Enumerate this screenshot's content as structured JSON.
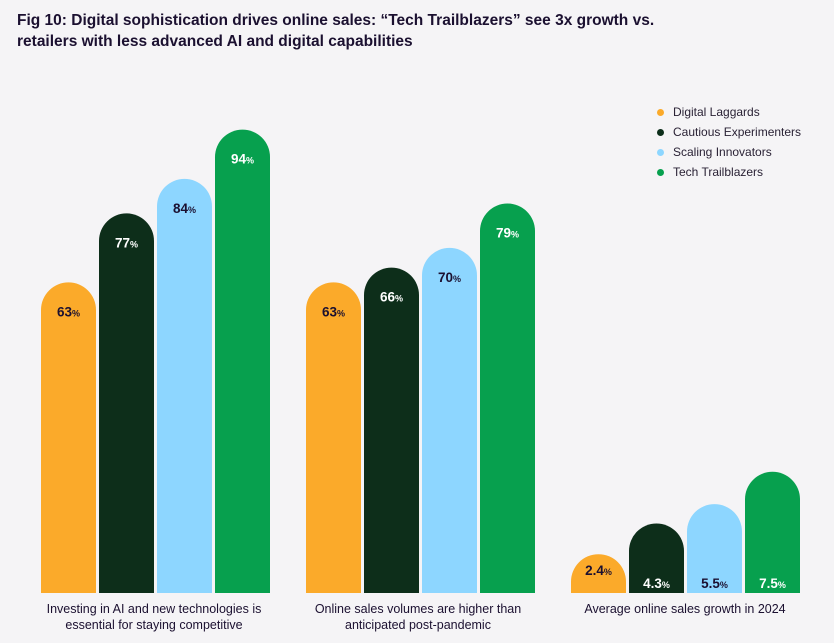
{
  "title": "Fig 10: Digital sophistication drives online sales: “Tech Trailblazers” see 3x growth vs. retailers with less advanced AI and digital capabilities",
  "legend": [
    {
      "label": "Digital Laggards",
      "color": "#fbaa2a"
    },
    {
      "label": "Cautious Experimenters",
      "color": "#0d2e1a"
    },
    {
      "label": "Scaling Innovators",
      "color": "#8dd6ff"
    },
    {
      "label": "Tech Trailblazers",
      "color": "#07a04e"
    }
  ],
  "categories": [
    "Investing in AI and new technologies is essential for staying competitive",
    "Online sales volumes are higher than anticipated post-pandemic",
    "Average online sales growth in 2024"
  ],
  "chart_data": {
    "type": "bar",
    "title": "Fig 10: Digital sophistication drives online sales: “Tech Trailblazers” see 3x growth vs. retailers with less advanced AI and digital capabilities",
    "categories": [
      "Investing in AI and new technologies is essential for staying competitive",
      "Online sales volumes are higher than anticipated post-pandemic",
      "Average online sales growth in 2024"
    ],
    "series": [
      {
        "name": "Digital Laggards",
        "color": "#fbaa2a",
        "values": [
          63,
          63,
          2.4
        ],
        "labels": [
          "63",
          "63",
          "2.4"
        ]
      },
      {
        "name": "Cautious Experimenters",
        "color": "#0d2e1a",
        "values": [
          77,
          66,
          4.3
        ],
        "labels": [
          "77",
          "66",
          "4.3"
        ]
      },
      {
        "name": "Scaling Innovators",
        "color": "#8dd6ff",
        "values": [
          84,
          70,
          5.5
        ],
        "labels": [
          "84",
          "70",
          "5.5"
        ]
      },
      {
        "name": "Tech Trailblazers",
        "color": "#07a04e",
        "values": [
          94,
          79,
          7.5
        ],
        "labels": [
          "94",
          "79",
          "7.5"
        ]
      }
    ],
    "unit": "%",
    "group_scales": [
      100,
      100,
      30.5
    ],
    "grid": false,
    "legend_position": "top-right"
  }
}
